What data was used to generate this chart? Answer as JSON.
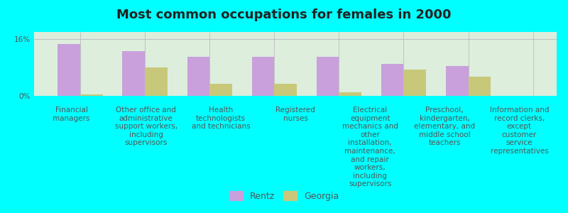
{
  "title": "Most common occupations for females in 2000",
  "background_color": "#00FFFF",
  "plot_bg_color": "#ddeedd",
  "categories": [
    "Financial\nmanagers",
    "Other office and\nadministrative\nsupport workers,\nincluding\nsupervisors",
    "Health\ntechnologists\nand technicians",
    "Registered\nnurses",
    "Electrical\nequipment\nmechanics and\nother\ninstallation,\nmaintenance,\nand repair\nworkers,\nincluding\nsupervisors",
    "Preschool,\nkindergarten,\nelementary, and\nmiddle school\nteachers",
    "Information and\nrecord clerks,\nexcept\ncustomer\nservice\nrepresentatives"
  ],
  "rentz_values": [
    14.5,
    12.5,
    11.0,
    11.0,
    11.0,
    9.0,
    8.5
  ],
  "georgia_values": [
    0.5,
    8.0,
    3.5,
    3.5,
    1.0,
    7.5,
    5.5
  ],
  "rentz_color": "#c9a0dc",
  "georgia_color": "#c8c87a",
  "ylim": [
    0,
    18
  ],
  "yticks": [
    0,
    16
  ],
  "ytick_labels": [
    "0%",
    "16%"
  ],
  "bar_width": 0.35,
  "legend_labels": [
    "Rentz",
    "Georgia"
  ],
  "title_fontsize": 13,
  "tick_fontsize": 7.5,
  "legend_fontsize": 9
}
